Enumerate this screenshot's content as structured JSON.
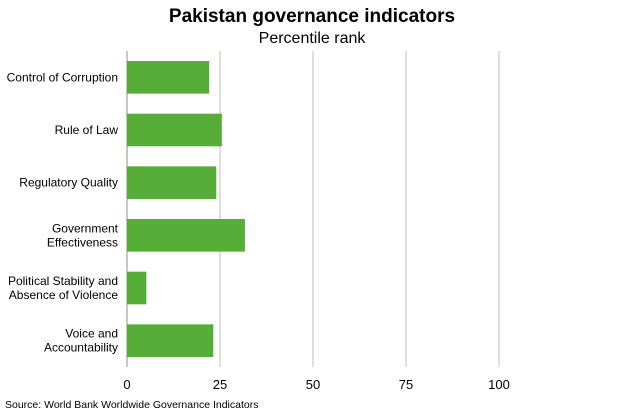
{
  "chart_data": {
    "type": "bar",
    "orientation": "horizontal",
    "title": "Pakistan governance indicators",
    "subtitle": "Percentile rank",
    "categories": [
      [
        "Control of Corruption"
      ],
      [
        "Rule of Law"
      ],
      [
        "Regulatory Quality"
      ],
      [
        "Government",
        "Effectiveness"
      ],
      [
        "Political Stability and",
        "Absence of Violence"
      ],
      [
        "Voice and",
        "Accountability"
      ]
    ],
    "values": [
      22.1,
      25.5,
      24.0,
      31.7,
      5.2,
      23.2
    ],
    "xlim": [
      0,
      100
    ],
    "xticks": [
      "0",
      "25",
      "50",
      "75",
      "100"
    ],
    "grid": "vertical",
    "bar_color": "#56ad37",
    "grid_color": "#bfbfbf",
    "source": "Source: World Bank Worldwide Governance Indicators"
  }
}
